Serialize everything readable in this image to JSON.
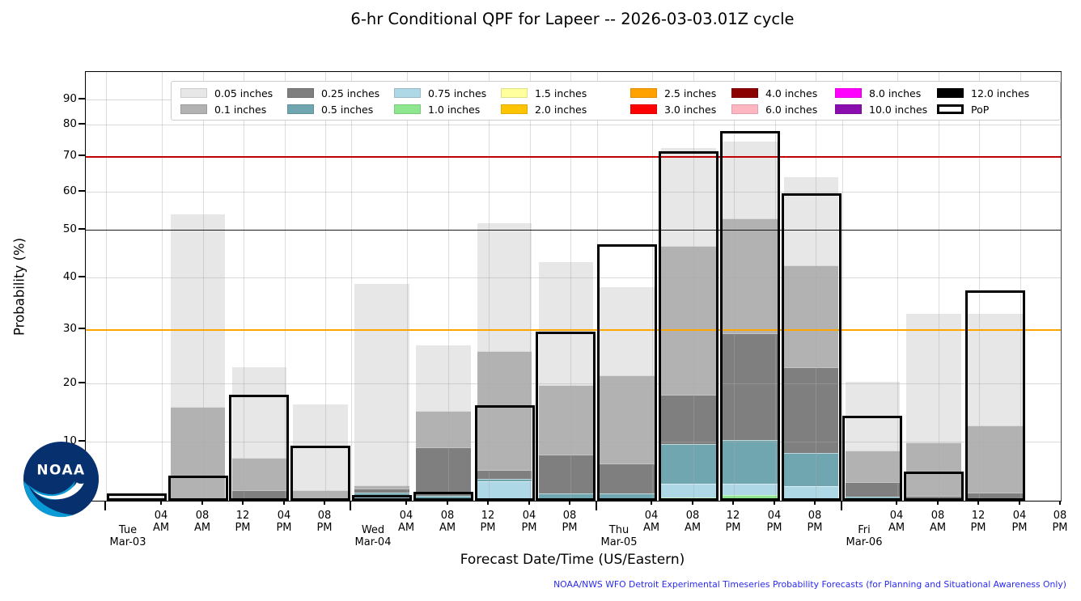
{
  "title": "6-hr Conditional QPF for Lapeer -- 2026-03-03.01Z cycle",
  "y_axis": {
    "label": "Probability (%)",
    "ticks": [
      10,
      20,
      30,
      40,
      50,
      60,
      70,
      80,
      90
    ]
  },
  "x_axis": {
    "label": "Forecast Date/Time (US/Eastern)",
    "time_labels": [
      "04 AM",
      "08 AM",
      "12 PM",
      "04 PM",
      "08 PM"
    ],
    "days": [
      {
        "line1": "Tue",
        "line2": "Mar-03"
      },
      {
        "line1": "Wed",
        "line2": "Mar-04"
      },
      {
        "line1": "Thu",
        "line2": "Mar-05"
      },
      {
        "line1": "Fri",
        "line2": "Mar-06"
      }
    ]
  },
  "attribution": "NOAA/NWS Detroit Experimental Timeseries Probability Forecasts (for Planning and Situational Awareness Only)",
  "attribution_full": "NOAA/NWS WFO Detroit Experimental Timeseries Probability Forecasts (for Planning and Situational Awareness Only)",
  "logo": {
    "text": "NOAA"
  },
  "colors": {
    "ref_70": "#c00000",
    "ref_50": "#1a1a1a",
    "ref_30": "#ffa500",
    "attribution": "#2a2af0",
    "pop_outline": "#000000"
  },
  "legend": [
    {
      "label": "0.05 inches",
      "color": "#e7e7e7"
    },
    {
      "label": "0.1 inches",
      "color": "#b2b2b2"
    },
    {
      "label": "0.25 inches",
      "color": "#7f7f7f"
    },
    {
      "label": "0.5 inches",
      "color": "#6fa6af"
    },
    {
      "label": "0.75 inches",
      "color": "#aed8e6"
    },
    {
      "label": "1.0 inches",
      "color": "#8ee78e"
    },
    {
      "label": "1.5 inches",
      "color": "#ffff9e"
    },
    {
      "label": "2.0 inches",
      "color": "#ffc400"
    },
    {
      "label": "2.5 inches",
      "color": "#ffa200"
    },
    {
      "label": "3.0 inches",
      "color": "#fe0000"
    },
    {
      "label": "4.0 inches",
      "color": "#8b0000"
    },
    {
      "label": "6.0 inches",
      "color": "#ffb6c1"
    },
    {
      "label": "8.0 inches",
      "color": "#ff00ff"
    },
    {
      "label": "10.0 inches",
      "color": "#8a0dad"
    },
    {
      "label": "12.0 inches",
      "color": "#000000"
    },
    {
      "label": "PoP",
      "color": "outline"
    }
  ],
  "reference_lines": [
    {
      "value": 70,
      "color": "#c00000"
    },
    {
      "value": 50,
      "color": "#1a1a1a"
    },
    {
      "value": 30,
      "color": "#ffa500"
    }
  ],
  "chart_data": {
    "type": "bar",
    "title": "6-hr Conditional QPF for Lapeer -- 2026-03-03.01Z cycle",
    "xlabel": "Forecast Date/Time (US/Eastern)",
    "ylabel": "Probability (%)",
    "ylim": [
      0,
      100
    ],
    "grid": "on",
    "legend_position": "top",
    "axis_scale": "nonlinear probability scale (gridline spacing widens toward 0%)",
    "bar_style": "overlaid nested exceedance bars (not stacked); PoP drawn as thick black outline",
    "n_periods": 16,
    "period_note": "6-hour periods from Tue Mar-03 through Fri Mar-06 (US/Eastern); last period has no data",
    "series": [
      {
        "name": "0.05 inches",
        "values": [
          0.8,
          54,
          23,
          16.4,
          38.8,
          27,
          51.8,
          43.3,
          38.1,
          72.5,
          74.5,
          64,
          20.3,
          33,
          33,
          null
        ]
      },
      {
        "name": "0.1 inches",
        "values": [
          null,
          16,
          7.3,
          1.8,
          2.6,
          15.3,
          26,
          19.7,
          21.5,
          46.6,
          53,
          42.5,
          8.5,
          9.8,
          12.8,
          null
        ]
      },
      {
        "name": "0.25 inches",
        "values": [
          null,
          null,
          1.8,
          null,
          2.0,
          9,
          5.2,
          7.8,
          6.3,
          18.1,
          29.3,
          23,
          3.1,
          0.8,
          1.4,
          null
        ]
      },
      {
        "name": "0.5 inches",
        "values": [
          null,
          null,
          null,
          null,
          1.4,
          0.8,
          3.7,
          1.2,
          1.3,
          9.6,
          10.3,
          8.1,
          0.7,
          null,
          null,
          null
        ]
      },
      {
        "name": "0.75 inches",
        "values": [
          null,
          null,
          null,
          null,
          0.8,
          null,
          3.3,
          null,
          null,
          2.9,
          2.9,
          2.4,
          0.4,
          null,
          null,
          null
        ]
      },
      {
        "name": "1.0 inches",
        "values": [
          null,
          null,
          null,
          null,
          null,
          null,
          null,
          null,
          null,
          0.6,
          0.9,
          null,
          null,
          null,
          null,
          null
        ]
      }
    ],
    "pop": {
      "name": "PoP",
      "values": [
        1.3,
        4.3,
        18,
        9.3,
        1.0,
        1.5,
        16.3,
        29.5,
        47,
        71.5,
        78,
        59.5,
        14.4,
        5,
        37.5,
        null
      ]
    }
  }
}
